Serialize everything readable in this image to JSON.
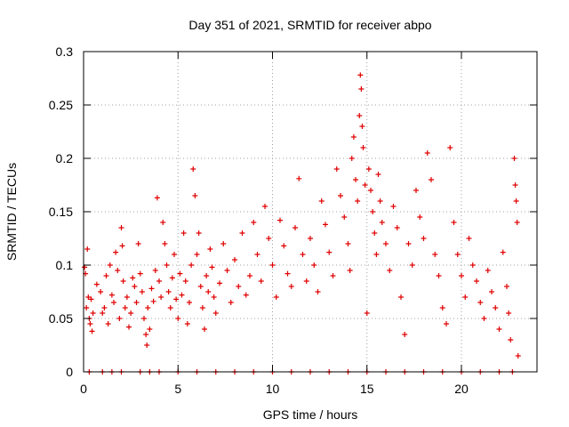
{
  "chart_data": {
    "type": "scatter",
    "title": "Day 351 of 2021, SRMTID for receiver abpo",
    "xlabel": "GPS time / hours",
    "ylabel": "SRMTID / TECUs",
    "xlim": [
      0,
      24
    ],
    "ylim": [
      0,
      0.3
    ],
    "xticks": [
      0,
      5,
      10,
      15,
      20
    ],
    "xtick_labels": [
      "0",
      "5",
      "10",
      "15",
      "20"
    ],
    "yticks": [
      0,
      0.05,
      0.1,
      0.15,
      0.2,
      0.25,
      0.3
    ],
    "ytick_labels": [
      "0",
      "0.05",
      "0.1",
      "0.15",
      "0.2",
      "0.25",
      "0.3"
    ],
    "grid": true,
    "marker": "+",
    "color": "#e00000",
    "series": [
      {
        "name": "SRMTID",
        "points": [
          [
            0.05,
            0.098
          ],
          [
            0.1,
            0.092
          ],
          [
            0.15,
            0.06
          ],
          [
            0.2,
            0.115
          ],
          [
            0.25,
            0.07
          ],
          [
            0.3,
            0.05
          ],
          [
            0.35,
            0.045
          ],
          [
            0.4,
            0.068
          ],
          [
            0.45,
            0.038
          ],
          [
            0.5,
            0.055
          ],
          [
            0.7,
            0.082
          ],
          [
            0.9,
            0.075
          ],
          [
            1.0,
            0.055
          ],
          [
            1.1,
            0.06
          ],
          [
            1.2,
            0.09
          ],
          [
            1.3,
            0.045
          ],
          [
            1.4,
            0.1
          ],
          [
            1.5,
            0.072
          ],
          [
            1.6,
            0.065
          ],
          [
            1.7,
            0.112
          ],
          [
            1.8,
            0.095
          ],
          [
            1.9,
            0.05
          ],
          [
            2.0,
            0.135
          ],
          [
            2.05,
            0.118
          ],
          [
            2.1,
            0.085
          ],
          [
            2.2,
            0.06
          ],
          [
            2.3,
            0.07
          ],
          [
            2.4,
            0.042
          ],
          [
            2.5,
            0.055
          ],
          [
            2.6,
            0.088
          ],
          [
            2.7,
            0.08
          ],
          [
            2.8,
            0.065
          ],
          [
            2.9,
            0.12
          ],
          [
            3.0,
            0.092
          ],
          [
            3.1,
            0.075
          ],
          [
            3.2,
            0.05
          ],
          [
            3.3,
            0.035
          ],
          [
            3.35,
            0.025
          ],
          [
            3.4,
            0.06
          ],
          [
            3.5,
            0.04
          ],
          [
            3.6,
            0.078
          ],
          [
            3.7,
            0.066
          ],
          [
            3.8,
            0.095
          ],
          [
            3.9,
            0.163
          ],
          [
            4.0,
            0.085
          ],
          [
            4.1,
            0.07
          ],
          [
            4.2,
            0.14
          ],
          [
            4.3,
            0.12
          ],
          [
            4.4,
            0.1
          ],
          [
            4.5,
            0.075
          ],
          [
            4.6,
            0.06
          ],
          [
            4.7,
            0.088
          ],
          [
            4.8,
            0.11
          ],
          [
            4.9,
            0.068
          ],
          [
            5.0,
            0.05
          ],
          [
            5.1,
            0.092
          ],
          [
            5.2,
            0.072
          ],
          [
            5.3,
            0.13
          ],
          [
            5.4,
            0.085
          ],
          [
            5.5,
            0.045
          ],
          [
            5.6,
            0.065
          ],
          [
            5.7,
            0.1
          ],
          [
            5.8,
            0.19
          ],
          [
            5.9,
            0.165
          ],
          [
            6.0,
            0.11
          ],
          [
            6.1,
            0.13
          ],
          [
            6.2,
            0.08
          ],
          [
            6.3,
            0.06
          ],
          [
            6.4,
            0.04
          ],
          [
            6.5,
            0.09
          ],
          [
            6.6,
            0.075
          ],
          [
            6.7,
            0.115
          ],
          [
            6.8,
            0.098
          ],
          [
            6.9,
            0.07
          ],
          [
            7.0,
            0.055
          ],
          [
            7.2,
            0.083
          ],
          [
            7.4,
            0.12
          ],
          [
            7.6,
            0.095
          ],
          [
            7.8,
            0.065
          ],
          [
            8.0,
            0.105
          ],
          [
            8.2,
            0.08
          ],
          [
            8.4,
            0.13
          ],
          [
            8.6,
            0.072
          ],
          [
            8.8,
            0.09
          ],
          [
            9.0,
            0.14
          ],
          [
            9.2,
            0.11
          ],
          [
            9.4,
            0.085
          ],
          [
            9.6,
            0.155
          ],
          [
            9.8,
            0.125
          ],
          [
            10.0,
            0.1
          ],
          [
            10.2,
            0.07
          ],
          [
            10.4,
            0.142
          ],
          [
            10.6,
            0.118
          ],
          [
            10.8,
            0.092
          ],
          [
            11.0,
            0.08
          ],
          [
            11.2,
            0.135
          ],
          [
            11.4,
            0.181
          ],
          [
            11.6,
            0.11
          ],
          [
            11.8,
            0.085
          ],
          [
            12.0,
            0.125
          ],
          [
            12.2,
            0.1
          ],
          [
            12.4,
            0.075
          ],
          [
            12.6,
            0.16
          ],
          [
            12.8,
            0.138
          ],
          [
            13.0,
            0.112
          ],
          [
            13.2,
            0.09
          ],
          [
            13.4,
            0.19
          ],
          [
            13.6,
            0.165
          ],
          [
            13.8,
            0.145
          ],
          [
            14.0,
            0.12
          ],
          [
            14.1,
            0.095
          ],
          [
            14.2,
            0.2
          ],
          [
            14.3,
            0.22
          ],
          [
            14.4,
            0.18
          ],
          [
            14.5,
            0.16
          ],
          [
            14.6,
            0.24
          ],
          [
            14.65,
            0.278
          ],
          [
            14.7,
            0.265
          ],
          [
            14.75,
            0.23
          ],
          [
            14.8,
            0.21
          ],
          [
            14.9,
            0.175
          ],
          [
            15.0,
            0.055
          ],
          [
            15.1,
            0.19
          ],
          [
            15.2,
            0.17
          ],
          [
            15.3,
            0.15
          ],
          [
            15.4,
            0.13
          ],
          [
            15.5,
            0.11
          ],
          [
            15.6,
            0.185
          ],
          [
            15.7,
            0.16
          ],
          [
            15.8,
            0.14
          ],
          [
            16.0,
            0.12
          ],
          [
            16.2,
            0.095
          ],
          [
            16.4,
            0.155
          ],
          [
            16.6,
            0.135
          ],
          [
            16.8,
            0.07
          ],
          [
            17.0,
            0.035
          ],
          [
            17.2,
            0.12
          ],
          [
            17.4,
            0.1
          ],
          [
            17.6,
            0.17
          ],
          [
            17.8,
            0.145
          ],
          [
            18.0,
            0.125
          ],
          [
            18.2,
            0.205
          ],
          [
            18.4,
            0.18
          ],
          [
            18.6,
            0.11
          ],
          [
            18.8,
            0.09
          ],
          [
            19.0,
            0.06
          ],
          [
            19.2,
            0.045
          ],
          [
            19.4,
            0.21
          ],
          [
            19.6,
            0.14
          ],
          [
            19.8,
            0.11
          ],
          [
            20.0,
            0.09
          ],
          [
            20.2,
            0.07
          ],
          [
            20.4,
            0.125
          ],
          [
            20.6,
            0.1
          ],
          [
            20.8,
            0.085
          ],
          [
            21.0,
            0.065
          ],
          [
            21.2,
            0.05
          ],
          [
            21.4,
            0.095
          ],
          [
            21.6,
            0.075
          ],
          [
            21.8,
            0.06
          ],
          [
            22.0,
            0.04
          ],
          [
            22.2,
            0.112
          ],
          [
            22.4,
            0.08
          ],
          [
            22.5,
            0.055
          ],
          [
            22.6,
            0.03
          ],
          [
            22.8,
            0.2
          ],
          [
            22.85,
            0.175
          ],
          [
            22.9,
            0.16
          ],
          [
            22.95,
            0.14
          ],
          [
            23.0,
            0.015
          ],
          [
            0.3,
            0.0
          ],
          [
            1.0,
            0.0
          ],
          [
            1.5,
            0.0
          ],
          [
            2.0,
            0.0
          ],
          [
            3.0,
            0.0
          ],
          [
            3.5,
            0.0
          ],
          [
            4.0,
            0.0
          ],
          [
            5.0,
            0.0
          ],
          [
            6.0,
            0.0
          ],
          [
            7.0,
            0.0
          ],
          [
            8.0,
            0.0
          ],
          [
            9.0,
            0.0
          ],
          [
            10.0,
            0.0
          ],
          [
            11.0,
            0.0
          ],
          [
            12.0,
            0.0
          ],
          [
            13.0,
            0.0
          ],
          [
            14.0,
            0.0
          ],
          [
            15.0,
            0.0
          ],
          [
            16.0,
            0.0
          ],
          [
            17.0,
            0.0
          ],
          [
            18.0,
            0.0
          ],
          [
            19.0,
            0.0
          ],
          [
            20.0,
            0.0
          ],
          [
            21.0,
            0.0
          ],
          [
            22.0,
            0.0
          ],
          [
            22.7,
            0.0
          ]
        ]
      }
    ]
  }
}
